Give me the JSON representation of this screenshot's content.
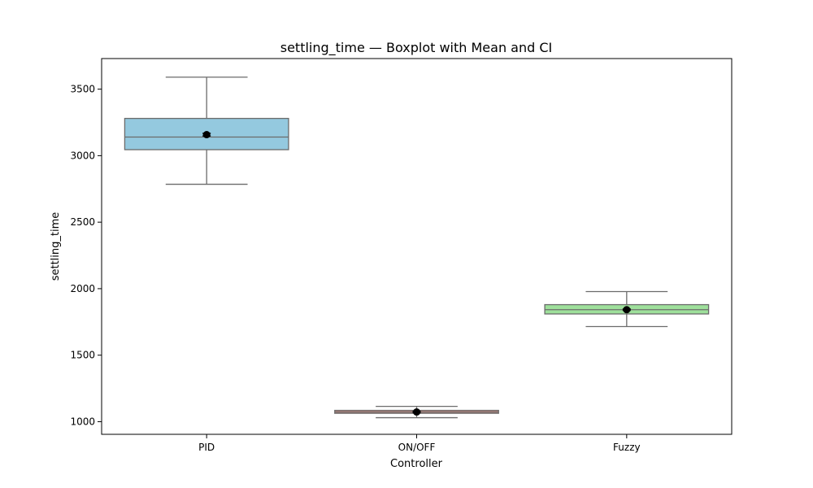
{
  "chart_data": {
    "type": "box",
    "title": "settling_time — Boxplot with Mean and CI",
    "xlabel": "Controller",
    "ylabel": "settling_time",
    "categories": [
      "PID",
      "ON/OFF",
      "Fuzzy"
    ],
    "ylim": [
      905,
      3730
    ],
    "yticks": [
      1000,
      1500,
      2000,
      2500,
      3000,
      3500
    ],
    "grid": false,
    "boxes": [
      {
        "category": "PID",
        "whisker_low": 2785,
        "q1": 3045,
        "median": 3140,
        "q3": 3280,
        "whisker_high": 3590,
        "mean": 3158,
        "ci": [
          3148,
          3168
        ],
        "color": "#94c9df"
      },
      {
        "category": "ON/OFF",
        "whisker_low": 1030,
        "q1": 1063,
        "median": 1073,
        "q3": 1085,
        "whisker_high": 1115,
        "mean": 1073,
        "ci": [
          1068,
          1078
        ],
        "color": "#d98c80"
      },
      {
        "category": "Fuzzy",
        "whisker_low": 1715,
        "q1": 1810,
        "median": 1842,
        "q3": 1880,
        "whisker_high": 1978,
        "mean": 1842,
        "ci": [
          1837,
          1847
        ],
        "color": "#9ee09b"
      }
    ]
  }
}
